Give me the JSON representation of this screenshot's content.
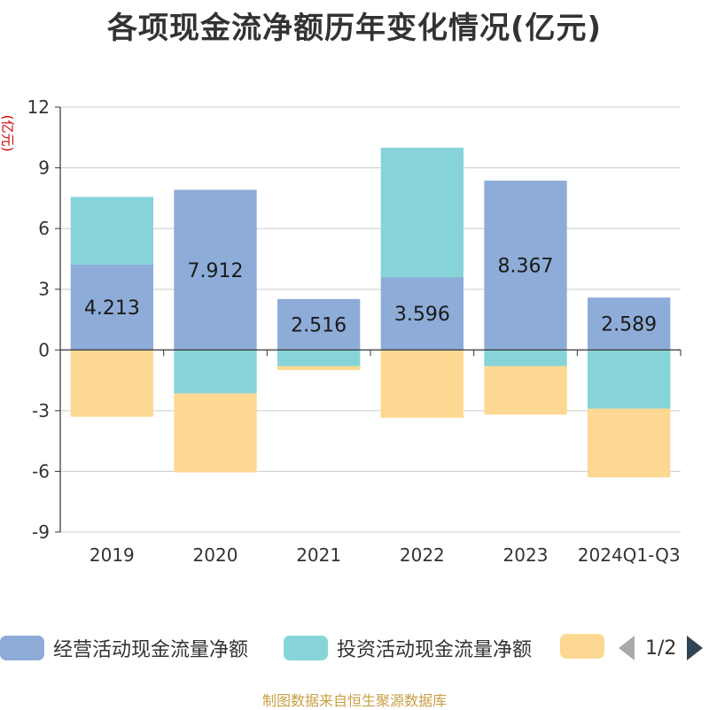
{
  "chart_data": {
    "type": "bar",
    "stacked": true,
    "title": "各项现金流净额历年变化情况(亿元)",
    "ylabel": "(亿元)",
    "xlabel": "",
    "ylim": [
      -9,
      12
    ],
    "yticks": [
      12,
      9,
      6,
      3,
      0,
      -3,
      -6,
      -9
    ],
    "categories": [
      "2019",
      "2020",
      "2021",
      "2022",
      "2023",
      "2024Q1-Q3"
    ],
    "series": [
      {
        "name": "经营活动现金流量净额",
        "color": "#8eacd8",
        "values": [
          4.213,
          7.912,
          2.516,
          3.596,
          8.367,
          2.589
        ],
        "labels": [
          "4.213",
          "7.912",
          "2.516",
          "3.596",
          "8.367",
          "2.589"
        ]
      },
      {
        "name": "投资活动现金流量净额",
        "color": "#86d4d8",
        "values": [
          3.35,
          -2.15,
          -0.8,
          6.4,
          -0.8,
          -2.9
        ]
      },
      {
        "name": "",
        "color": "#fdd893",
        "values": [
          -3.3,
          -3.9,
          -0.2,
          -3.35,
          -2.4,
          -3.4
        ]
      }
    ],
    "legend_position": "bottom",
    "grid": true
  },
  "legend": {
    "items": [
      {
        "label": "经营活动现金流量净额",
        "color": "#8eacd8"
      },
      {
        "label": "投资活动现金流量净额",
        "color": "#86d4d8"
      },
      {
        "label": "",
        "color": "#fdd893"
      }
    ],
    "page_indicator": "1/2"
  },
  "footer": {
    "source": "制图数据来自恒生聚源数据库"
  }
}
